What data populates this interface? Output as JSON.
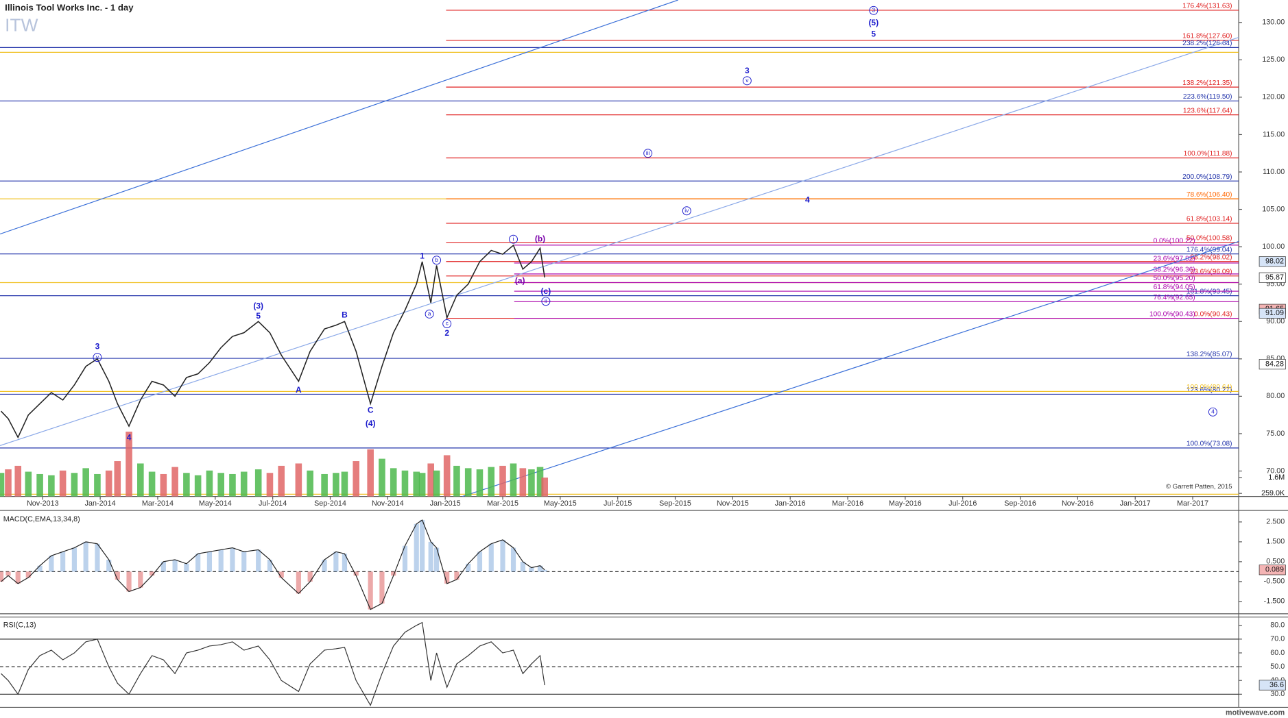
{
  "chart_data": [
    {
      "type": "line",
      "title": "Illinois Tool Works Inc. - 1 day",
      "symbol": "ITW",
      "color": "#222222",
      "x": [
        -0.45,
        -0.2,
        0.14,
        0.5,
        0.9,
        1.3,
        1.7,
        2.1,
        2.5,
        2.9,
        3.3,
        3.6,
        4.0,
        4.4,
        4.8,
        5.2,
        5.6,
        6.0,
        6.4,
        6.8,
        7.2,
        7.6,
        8.0,
        8.5,
        8.9,
        9.3,
        9.9,
        10.3,
        10.8,
        11.2,
        11.5,
        11.9,
        12.4,
        12.8,
        13.2,
        13.6,
        14.0,
        14.2,
        14.5,
        14.7,
        15.06,
        15.4,
        15.8,
        16.2,
        16.6,
        17.0,
        17.37,
        17.7,
        18.0,
        18.3,
        18.46
      ],
      "values": [
        78,
        77,
        74.5,
        77.5,
        79,
        80.5,
        79.5,
        81.5,
        84,
        85,
        82,
        79,
        76,
        79.5,
        82,
        81.5,
        80,
        82.5,
        83,
        84.5,
        86.5,
        88,
        88.5,
        90,
        88.5,
        85.5,
        82,
        86,
        89,
        89.5,
        90,
        86,
        79,
        84,
        88.5,
        91.5,
        95,
        98,
        92.5,
        97.5,
        90.5,
        93.5,
        95,
        98,
        99.5,
        99,
        100.2,
        97,
        98,
        99.8,
        95.9
      ],
      "volume": [
        2.0,
        2.3,
        2.6,
        2.1,
        1.9,
        1.8,
        2.2,
        2.0,
        2.4,
        1.9,
        2.2,
        3.0,
        5.5,
        2.8,
        2.1,
        1.9,
        2.5,
        2.0,
        1.8,
        2.2,
        2.0,
        1.9,
        2.1,
        2.3,
        2.0,
        2.6,
        2.8,
        2.2,
        1.9,
        2.0,
        2.1,
        3.0,
        4.0,
        3.2,
        2.4,
        2.2,
        2.1,
        2.0,
        2.8,
        2.2,
        3.5,
        2.6,
        2.4,
        2.3,
        2.5,
        2.6,
        2.8,
        2.4,
        2.3,
        2.5,
        1.6
      ],
      "volume_colors": {
        "up": "#4cb84c",
        "down": "#e06666"
      },
      "volume_ylim": [
        0,
        6.2
      ],
      "volume_ticks": [
        {
          "value": 1.6,
          "label": "1.6M"
        },
        {
          "value": 0.259,
          "label": "259.0K"
        }
      ],
      "xlim": [
        -0.486,
        42.6
      ],
      "xticks": [
        {
          "value": 1,
          "label": "Nov-2013"
        },
        {
          "value": 3,
          "label": "Jan-2014"
        },
        {
          "value": 5,
          "label": "Mar-2014"
        },
        {
          "value": 7,
          "label": "May-2014"
        },
        {
          "value": 9,
          "label": "Jul-2014"
        },
        {
          "value": 11,
          "label": "Sep-2014"
        },
        {
          "value": 13,
          "label": "Nov-2014"
        },
        {
          "value": 15,
          "label": "Jan-2015"
        },
        {
          "value": 17,
          "label": "Mar-2015"
        },
        {
          "value": 19,
          "label": "May-2015"
        },
        {
          "value": 21,
          "label": "Jul-2015"
        },
        {
          "value": 23,
          "label": "Sep-2015"
        },
        {
          "value": 25,
          "label": "Nov-2015"
        },
        {
          "value": 27,
          "label": "Jan-2016"
        },
        {
          "value": 29,
          "label": "Mar-2016"
        },
        {
          "value": 31,
          "label": "May-2016"
        },
        {
          "value": 33,
          "label": "Jul-2016"
        },
        {
          "value": 35,
          "label": "Sep-2016"
        },
        {
          "value": 37,
          "label": "Nov-2016"
        },
        {
          "value": 39,
          "label": "Jan-2017"
        },
        {
          "value": 41,
          "label": "Mar-2017"
        }
      ],
      "ylim": [
        66.6,
        133
      ],
      "yticks": [
        {
          "value": 70,
          "label": "70.00"
        },
        {
          "value": 75,
          "label": "75.00"
        },
        {
          "value": 80,
          "label": "80.00"
        },
        {
          "value": 85,
          "label": "85.00"
        },
        {
          "value": 90,
          "label": "90.00"
        },
        {
          "value": 95,
          "label": "95.00"
        },
        {
          "value": 100,
          "label": "100.00"
        },
        {
          "value": 105,
          "label": "105.00"
        },
        {
          "value": 110,
          "label": "110.00"
        },
        {
          "value": 115,
          "label": "115.00"
        },
        {
          "value": 120,
          "label": "120.00"
        },
        {
          "value": 125,
          "label": "125.00"
        },
        {
          "value": 130,
          "label": "130.00"
        }
      ],
      "fib_levels": [
        {
          "value": 131.63,
          "label": "176.4%(131.63)",
          "color": "#e02020",
          "from": 15.03
        },
        {
          "value": 127.6,
          "label": "161.8%(127.60)",
          "color": "#e02020",
          "from": 15.03
        },
        {
          "value": 121.35,
          "label": "138.2%(121.35)",
          "color": "#e02020",
          "from": 15.03
        },
        {
          "value": 117.64,
          "label": "123.6%(117.64)",
          "color": "#e02020",
          "from": 15.03
        },
        {
          "value": 111.88,
          "label": "100.0%(111.88)",
          "color": "#e02020",
          "from": 15.03
        },
        {
          "value": 106.4,
          "label": "78.6%(106.40)",
          "color": "#ff6600",
          "from": 15.03
        },
        {
          "value": 103.14,
          "label": "61.8%(103.14)",
          "color": "#e02020",
          "from": 15.03
        },
        {
          "value": 100.58,
          "label": "50.0%(100.58)",
          "color": "#e02020",
          "from": 15.03
        },
        {
          "value": 98.02,
          "label": "38.2%(98.02)",
          "color": "#e02020",
          "from": 15.03
        },
        {
          "value": 96.09,
          "label": "23.6%(96.09)",
          "color": "#e02020",
          "from": 15.03
        },
        {
          "value": 90.43,
          "label": "0.0%(90.43)",
          "color": "#e02020",
          "from": 15.03
        },
        {
          "value": 126.64,
          "label": "238.2%(126.64)",
          "color": "#2233aa",
          "from": -0.486
        },
        {
          "value": 119.5,
          "label": "223.6%(119.50)",
          "color": "#2233aa",
          "from": -0.486
        },
        {
          "value": 108.79,
          "label": "200.0%(108.79)",
          "color": "#2233aa",
          "from": -0.486
        },
        {
          "value": 99.04,
          "label": "176.4%(99.04)",
          "color": "#2233aa",
          "from": -0.486
        },
        {
          "value": 93.45,
          "label": "161.8%(93.45)",
          "color": "#2233aa",
          "from": -0.486
        },
        {
          "value": 85.07,
          "label": "138.2%(85.07)",
          "color": "#2233aa",
          "from": -0.486
        },
        {
          "value": 80.27,
          "label": "123.6%(80.27)",
          "color": "#2233aa",
          "from": -0.486
        },
        {
          "value": 73.08,
          "label": "100.0%(73.08)",
          "color": "#2233aa",
          "from": -0.486
        },
        {
          "value": 80.64,
          "label": "100.0%(80.64)",
          "color": "#f0c020",
          "from": -0.486
        },
        {
          "value": 100.22,
          "label": "0.0%(100.22)",
          "color": "#aa00aa",
          "from": 17.4
        },
        {
          "value": 97.82,
          "label": "23.6%(97.82)",
          "color": "#aa00aa",
          "from": 17.4
        },
        {
          "value": 96.36,
          "label": "38.2%(96.36)",
          "color": "#aa00aa",
          "from": 17.4
        },
        {
          "value": 95.2,
          "label": "50.0%(95.20)",
          "color": "#aa00aa",
          "from": 17.4
        },
        {
          "value": 94.05,
          "label": "61.8%(94.05)",
          "color": "#aa00aa",
          "from": 17.4
        },
        {
          "value": 92.65,
          "label": "76.4%(92.65)",
          "color": "#aa00aa",
          "from": 17.4
        },
        {
          "value": 90.43,
          "label": "100.0%(90.43)",
          "color": "#aa00aa",
          "from": 17.4
        }
      ],
      "guides": [
        126.0,
        106.4,
        95.2,
        66.9
      ],
      "guide_color": "#f0c020",
      "trendlines": [
        {
          "points": [
            [
              -0.486,
              101.7
            ],
            [
              23.1,
              133
            ]
          ],
          "color": "#3a6fd8"
        },
        {
          "points": [
            [
              -0.486,
              73.4
            ],
            [
              42.6,
              128.0
            ]
          ],
          "color": "#8aa8e8"
        },
        {
          "points": [
            [
              15.6,
              66.6
            ],
            [
              42.6,
              100.7
            ]
          ],
          "color": "#3a6fd8"
        }
      ],
      "wave_labels": [
        {
          "text": "3",
          "x": 2.9,
          "y": 86.6,
          "color": "#1a1acc"
        },
        {
          "text": "v",
          "x": 2.9,
          "y": 85.2,
          "color": "#1a1acc",
          "circled": true
        },
        {
          "text": "4",
          "x": 4.0,
          "y": 74.4,
          "color": "#1a1acc"
        },
        {
          "text": "(3)",
          "x": 8.5,
          "y": 92.0,
          "color": "#1a1acc"
        },
        {
          "text": "5",
          "x": 8.5,
          "y": 90.7,
          "color": "#1a1acc"
        },
        {
          "text": "A",
          "x": 9.9,
          "y": 80.8,
          "color": "#1a1acc"
        },
        {
          "text": "B",
          "x": 11.5,
          "y": 90.8,
          "color": "#1a1acc"
        },
        {
          "text": "C",
          "x": 12.4,
          "y": 78.1,
          "color": "#1a1acc"
        },
        {
          "text": "(4)",
          "x": 12.4,
          "y": 76.3,
          "color": "#1a1acc"
        },
        {
          "text": "1",
          "x": 14.2,
          "y": 98.7,
          "color": "#1a1acc"
        },
        {
          "text": "b",
          "x": 14.7,
          "y": 98.2,
          "color": "#1a1acc",
          "circled": true
        },
        {
          "text": "a",
          "x": 14.45,
          "y": 91.0,
          "color": "#1a1acc",
          "circled": true
        },
        {
          "text": "c",
          "x": 15.06,
          "y": 89.7,
          "color": "#1a1acc",
          "circled": true
        },
        {
          "text": "2",
          "x": 15.06,
          "y": 88.4,
          "color": "#1a1acc"
        },
        {
          "text": "i",
          "x": 17.37,
          "y": 101.0,
          "color": "#1a1acc",
          "circled": true
        },
        {
          "text": "(b)",
          "x": 18.3,
          "y": 101.0,
          "color": "#7a00aa"
        },
        {
          "text": "(a)",
          "x": 17.6,
          "y": 95.4,
          "color": "#7a00aa"
        },
        {
          "text": "(c)",
          "x": 18.5,
          "y": 94.0,
          "color": "#1a1acc"
        },
        {
          "text": "ii",
          "x": 18.5,
          "y": 92.7,
          "color": "#1a1acc",
          "circled": true
        },
        {
          "text": "iii",
          "x": 22.05,
          "y": 112.5,
          "color": "#1a1acc",
          "circled": true
        },
        {
          "text": "iv",
          "x": 23.4,
          "y": 104.8,
          "color": "#1a1acc",
          "circled": true
        },
        {
          "text": "3",
          "x": 25.5,
          "y": 123.5,
          "color": "#1a1acc"
        },
        {
          "text": "v",
          "x": 25.5,
          "y": 122.2,
          "color": "#1a1acc",
          "circled": true
        },
        {
          "text": "4",
          "x": 27.6,
          "y": 106.2,
          "color": "#1a1acc"
        },
        {
          "text": "3",
          "x": 29.9,
          "y": 131.6,
          "color": "#1a1acc",
          "circled": true
        },
        {
          "text": "(5)",
          "x": 29.9,
          "y": 129.9,
          "color": "#1a1acc"
        },
        {
          "text": "5",
          "x": 29.9,
          "y": 128.4,
          "color": "#1a1acc"
        },
        {
          "text": "4",
          "x": 41.7,
          "y": 77.9,
          "color": "#1a1acc",
          "circled": true
        }
      ],
      "markers": [
        {
          "value": 98.02,
          "label": "98.02",
          "color": "#d6e4f7"
        },
        {
          "value": 95.87,
          "label": "95.87",
          "color": "#ffffff"
        },
        {
          "value": 91.65,
          "label": "91.65",
          "color": "#f4b4b4"
        },
        {
          "value": 91.09,
          "label": "91.09",
          "color": "#d6e4f7"
        },
        {
          "value": 84.28,
          "label": "84.28",
          "color": "#ffffff"
        }
      ],
      "copyright": "© Garrett Patten, 2015"
    },
    {
      "type": "line",
      "title": "MACD(C,EMA,13,34,8)",
      "color": "#222222",
      "values": [
        -0.5,
        -0.2,
        -0.6,
        -0.3,
        0.3,
        0.8,
        1.0,
        1.2,
        1.5,
        1.4,
        0.6,
        -0.4,
        -1.0,
        -0.8,
        -0.2,
        0.5,
        0.6,
        0.4,
        0.9,
        1.0,
        1.1,
        1.2,
        1.0,
        1.1,
        0.6,
        -0.3,
        -1.1,
        -0.5,
        0.6,
        1.0,
        0.9,
        -0.2,
        -1.9,
        -1.6,
        -0.2,
        1.3,
        2.4,
        2.6,
        1.5,
        1.2,
        -0.6,
        -0.4,
        0.4,
        1.0,
        1.4,
        1.6,
        1.2,
        0.5,
        0.2,
        0.3,
        0.089
      ],
      "ylim": [
        -2.12,
        3.04
      ],
      "yticks": [
        {
          "value": 2.5,
          "label": "2.500"
        },
        {
          "value": 1.5,
          "label": "1.500"
        },
        {
          "value": 0.5,
          "label": "0.500"
        },
        {
          "value": -0.5,
          "label": "-0.500"
        },
        {
          "value": -1.5,
          "label": "-1.500"
        }
      ],
      "zero_line": 0,
      "markers": [
        {
          "value": 0.089,
          "label": "0.089",
          "color": "#f4b4b4"
        }
      ]
    },
    {
      "type": "line",
      "title": "RSI(C,13)",
      "color": "#333333",
      "values": [
        45,
        40,
        30,
        48,
        58,
        62,
        55,
        60,
        68,
        70,
        50,
        38,
        30,
        45,
        58,
        55,
        45,
        60,
        62,
        65,
        66,
        68,
        62,
        65,
        55,
        40,
        32,
        52,
        62,
        63,
        64,
        40,
        22,
        45,
        65,
        75,
        80,
        82,
        40,
        60,
        35,
        52,
        58,
        65,
        68,
        60,
        62,
        45,
        52,
        58,
        36.6
      ],
      "ylim": [
        20.5,
        86
      ],
      "yticks": [
        {
          "value": 80,
          "label": "80.0"
        },
        {
          "value": 70,
          "label": "70.0"
        },
        {
          "value": 60,
          "label": "60.0"
        },
        {
          "value": 50,
          "label": "50.0"
        },
        {
          "value": 40,
          "label": "40.0"
        },
        {
          "value": 30,
          "label": "30.0"
        }
      ],
      "bands": [
        70,
        30
      ],
      "zero_line": 50,
      "markers": [
        {
          "value": 36.6,
          "label": "36.6",
          "color": "#d6e4f7"
        }
      ]
    }
  ],
  "footer": "motivewave.com"
}
